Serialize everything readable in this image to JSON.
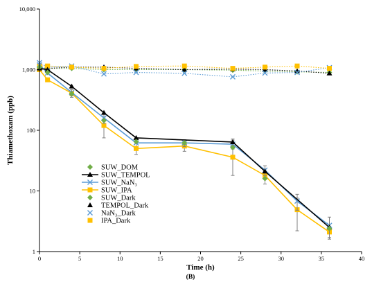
{
  "chart_data": {
    "type": "line",
    "title": "",
    "xlabel": "Time (h)",
    "ylabel": "Thiamethoxam (ppb)",
    "panel_label": "(B)",
    "xlim": [
      0,
      40
    ],
    "ylim": [
      1,
      10000
    ],
    "yscale": "log",
    "x_ticks": [
      0,
      5,
      10,
      15,
      20,
      25,
      30,
      35,
      40
    ],
    "x_tick_labels": [
      "0",
      "5",
      "10",
      "15",
      "20",
      "25",
      "30",
      "35",
      "40"
    ],
    "y_ticks": [
      1,
      10,
      100,
      1000,
      10000
    ],
    "y_tick_labels": [
      "1",
      "10",
      "100",
      "1,000",
      "10,000"
    ],
    "grid": false,
    "legend_position": "lower-left",
    "series": [
      {
        "name": "SUW_DOM",
        "color": "#70ad47",
        "marker": "diamond",
        "line": "none",
        "x": [
          0,
          1,
          4,
          8,
          12,
          18,
          24,
          28,
          36
        ],
        "y": [
          1100,
          900,
          400,
          145,
          65,
          62,
          52,
          16,
          2.4
        ]
      },
      {
        "name": "SUW_TEMPOL",
        "color": "#000000",
        "marker": "triangle",
        "line": "solid",
        "x": [
          0,
          1,
          4,
          8,
          12,
          24,
          28,
          36
        ],
        "y": [
          1050,
          1000,
          530,
          195,
          75,
          64,
          21,
          2.5
        ],
        "yerr": [
          0,
          0,
          0,
          0,
          0,
          8,
          0,
          0
        ]
      },
      {
        "name": "SUW_NaN3",
        "color": "#5b9bd5",
        "marker": "x",
        "line": "solid",
        "x": [
          0,
          1,
          4,
          8,
          12,
          18,
          24,
          28,
          32,
          36
        ],
        "y": [
          1200,
          880,
          420,
          160,
          62,
          62,
          59,
          22,
          6.8,
          2.7
        ],
        "yerr": [
          0,
          0,
          50,
          30,
          0,
          8,
          10,
          4,
          2.0,
          1.0
        ]
      },
      {
        "name": "SUW_IPA",
        "color": "#ffc000",
        "marker": "square",
        "line": "solid",
        "x": [
          0,
          1,
          4,
          8,
          12,
          18,
          24,
          28,
          32,
          36
        ],
        "y": [
          1000,
          680,
          410,
          120,
          50,
          55,
          36,
          18,
          4.9,
          2.1
        ],
        "yerr": [
          0,
          0,
          60,
          45,
          10,
          10,
          18,
          5,
          2.7,
          0.5
        ]
      },
      {
        "name": "SUW_Dark",
        "color": "#70ad47",
        "marker": "diamond",
        "line": "dotted",
        "x": [
          0,
          1,
          4,
          8,
          12,
          18,
          24,
          28,
          32,
          36
        ],
        "y": [
          1100,
          1050,
          1050,
          1000,
          1000,
          1000,
          980,
          950,
          920,
          900
        ]
      },
      {
        "name": "TEMPOL_Dark",
        "color": "#000000",
        "marker": "triangle",
        "line": "dotted",
        "x": [
          0,
          1,
          4,
          8,
          12,
          18,
          24,
          28,
          32,
          36
        ],
        "y": [
          1000,
          1050,
          1100,
          1100,
          1050,
          1000,
          1020,
          1000,
          950,
          870
        ]
      },
      {
        "name": "NaN3_Dark",
        "color": "#5b9bd5",
        "marker": "x",
        "line": "dotted",
        "x": [
          0,
          1,
          4,
          8,
          12,
          18,
          24,
          28,
          32,
          36
        ],
        "y": [
          1300,
          1100,
          1150,
          850,
          900,
          870,
          760,
          880,
          900,
          1080
        ]
      },
      {
        "name": "IPA_Dark",
        "color": "#ffc000",
        "marker": "square",
        "line": "dotted",
        "x": [
          0,
          1,
          4,
          8,
          12,
          18,
          24,
          28,
          32,
          36
        ],
        "y": [
          1150,
          1150,
          1100,
          1050,
          1130,
          1150,
          1050,
          1100,
          1150,
          1050
        ]
      }
    ],
    "legend_labels": [
      "SUW_DOM",
      "SUW_TEMPOL",
      "SUW_NaN₃",
      "SUW_IPA",
      "SUW_Dark",
      "TEMPOL_Dark",
      "NaN₃_Dark",
      "IPA_Dark"
    ]
  }
}
